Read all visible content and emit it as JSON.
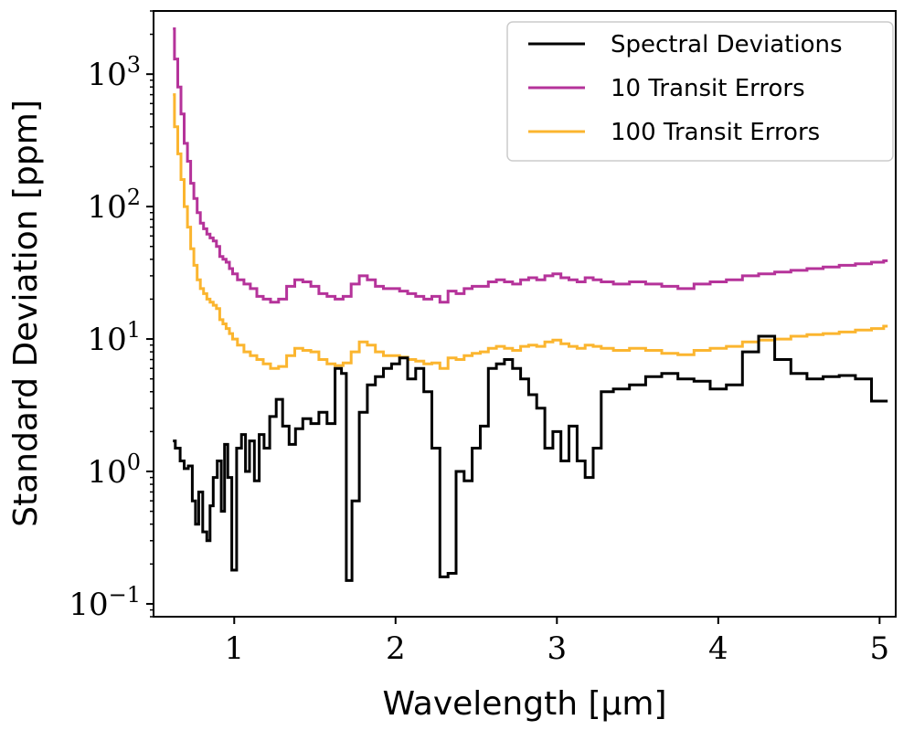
{
  "chart_data": {
    "type": "line",
    "drawstyle": "steps-mid",
    "title": "",
    "xlabel": "Wavelength [µm]",
    "ylabel": "Standard Deviation [ppm]",
    "xlim": [
      0.5,
      5.1
    ],
    "ylim": [
      0.08,
      3000
    ],
    "yscale": "log",
    "xticks": [
      {
        "value": 1,
        "label": "1"
      },
      {
        "value": 2,
        "label": "2"
      },
      {
        "value": 3,
        "label": "3"
      },
      {
        "value": 4,
        "label": "4"
      },
      {
        "value": 5,
        "label": "5"
      }
    ],
    "yticks": [
      {
        "value": 0.1,
        "base": "10",
        "exp": "−1"
      },
      {
        "value": 1,
        "base": "10",
        "exp": "0"
      },
      {
        "value": 10,
        "base": "10",
        "exp": "1"
      },
      {
        "value": 100,
        "base": "10",
        "exp": "2"
      },
      {
        "value": 1000,
        "base": "10",
        "exp": "3"
      }
    ],
    "legend_position": "top-right",
    "series": [
      {
        "name": "Spectral Deviations",
        "color": "#000000",
        "points": [
          [
            0.62,
            1.7
          ],
          [
            0.65,
            1.5
          ],
          [
            0.68,
            1.2
          ],
          [
            0.7,
            1.05
          ],
          [
            0.73,
            1.1
          ],
          [
            0.75,
            0.6
          ],
          [
            0.77,
            0.4
          ],
          [
            0.79,
            0.7
          ],
          [
            0.82,
            0.35
          ],
          [
            0.84,
            0.3
          ],
          [
            0.86,
            0.55
          ],
          [
            0.88,
            0.9
          ],
          [
            0.91,
            1.2
          ],
          [
            0.93,
            0.5
          ],
          [
            0.95,
            1.6
          ],
          [
            0.97,
            0.9
          ],
          [
            1.0,
            0.18
          ],
          [
            1.03,
            1.5
          ],
          [
            1.06,
            1.9
          ],
          [
            1.08,
            1.0
          ],
          [
            1.11,
            1.7
          ],
          [
            1.14,
            0.85
          ],
          [
            1.17,
            1.9
          ],
          [
            1.2,
            1.5
          ],
          [
            1.24,
            2.6
          ],
          [
            1.28,
            3.5
          ],
          [
            1.32,
            2.2
          ],
          [
            1.36,
            1.6
          ],
          [
            1.4,
            2.1
          ],
          [
            1.45,
            2.5
          ],
          [
            1.5,
            2.3
          ],
          [
            1.55,
            2.8
          ],
          [
            1.6,
            2.3
          ],
          [
            1.65,
            6.0
          ],
          [
            1.68,
            5.5
          ],
          [
            1.71,
            0.15
          ],
          [
            1.75,
            0.6
          ],
          [
            1.8,
            2.8
          ],
          [
            1.85,
            4.5
          ],
          [
            1.9,
            5.2
          ],
          [
            1.95,
            6.0
          ],
          [
            2.0,
            6.5
          ],
          [
            2.05,
            7.2
          ],
          [
            2.1,
            5.0
          ],
          [
            2.15,
            6.0
          ],
          [
            2.2,
            4.0
          ],
          [
            2.25,
            1.5
          ],
          [
            2.3,
            0.16
          ],
          [
            2.35,
            0.17
          ],
          [
            2.4,
            1.0
          ],
          [
            2.45,
            0.85
          ],
          [
            2.5,
            1.5
          ],
          [
            2.55,
            2.2
          ],
          [
            2.6,
            6.0
          ],
          [
            2.65,
            6.5
          ],
          [
            2.7,
            7.0
          ],
          [
            2.75,
            6.0
          ],
          [
            2.8,
            5.0
          ],
          [
            2.85,
            3.8
          ],
          [
            2.9,
            3.0
          ],
          [
            2.95,
            1.5
          ],
          [
            3.0,
            2.0
          ],
          [
            3.05,
            1.2
          ],
          [
            3.1,
            2.2
          ],
          [
            3.15,
            1.2
          ],
          [
            3.2,
            0.9
          ],
          [
            3.25,
            1.5
          ],
          [
            3.3,
            4.0
          ],
          [
            3.4,
            4.2
          ],
          [
            3.5,
            4.5
          ],
          [
            3.6,
            5.2
          ],
          [
            3.7,
            5.5
          ],
          [
            3.8,
            5.0
          ],
          [
            3.9,
            4.8
          ],
          [
            4.0,
            4.2
          ],
          [
            4.1,
            4.5
          ],
          [
            4.2,
            8.0
          ],
          [
            4.3,
            10.5
          ],
          [
            4.4,
            7.0
          ],
          [
            4.5,
            5.5
          ],
          [
            4.6,
            5.0
          ],
          [
            4.7,
            5.2
          ],
          [
            4.8,
            5.3
          ],
          [
            4.9,
            5.0
          ],
          [
            5.0,
            3.4
          ],
          [
            5.05,
            3.4
          ]
        ]
      },
      {
        "name": "10 Transit Errors",
        "color": "#b5339a",
        "points": [
          [
            0.62,
            2200
          ],
          [
            0.64,
            1300
          ],
          [
            0.66,
            800
          ],
          [
            0.68,
            500
          ],
          [
            0.7,
            300
          ],
          [
            0.72,
            220
          ],
          [
            0.74,
            150
          ],
          [
            0.76,
            115
          ],
          [
            0.78,
            90
          ],
          [
            0.8,
            75
          ],
          [
            0.82,
            68
          ],
          [
            0.84,
            62
          ],
          [
            0.86,
            58
          ],
          [
            0.88,
            55
          ],
          [
            0.9,
            50
          ],
          [
            0.92,
            42
          ],
          [
            0.94,
            40
          ],
          [
            0.96,
            38
          ],
          [
            0.98,
            34
          ],
          [
            1.0,
            31
          ],
          [
            1.04,
            28
          ],
          [
            1.08,
            26
          ],
          [
            1.12,
            24
          ],
          [
            1.16,
            21
          ],
          [
            1.2,
            20
          ],
          [
            1.25,
            19
          ],
          [
            1.3,
            20
          ],
          [
            1.35,
            25
          ],
          [
            1.4,
            28
          ],
          [
            1.45,
            27
          ],
          [
            1.5,
            25
          ],
          [
            1.55,
            22
          ],
          [
            1.6,
            21
          ],
          [
            1.65,
            20
          ],
          [
            1.7,
            21
          ],
          [
            1.75,
            26
          ],
          [
            1.8,
            30
          ],
          [
            1.85,
            28
          ],
          [
            1.9,
            25
          ],
          [
            1.95,
            24
          ],
          [
            2.0,
            24
          ],
          [
            2.05,
            23
          ],
          [
            2.1,
            22
          ],
          [
            2.15,
            21
          ],
          [
            2.2,
            20
          ],
          [
            2.25,
            21
          ],
          [
            2.3,
            19
          ],
          [
            2.35,
            23
          ],
          [
            2.4,
            22
          ],
          [
            2.45,
            24
          ],
          [
            2.5,
            25
          ],
          [
            2.55,
            25
          ],
          [
            2.6,
            27
          ],
          [
            2.65,
            28
          ],
          [
            2.7,
            27
          ],
          [
            2.75,
            26
          ],
          [
            2.8,
            28
          ],
          [
            2.85,
            29
          ],
          [
            2.9,
            28
          ],
          [
            2.95,
            30
          ],
          [
            3.0,
            31
          ],
          [
            3.05,
            29
          ],
          [
            3.1,
            28
          ],
          [
            3.15,
            27
          ],
          [
            3.2,
            29
          ],
          [
            3.25,
            28
          ],
          [
            3.3,
            27
          ],
          [
            3.4,
            26
          ],
          [
            3.5,
            27
          ],
          [
            3.6,
            26
          ],
          [
            3.7,
            25
          ],
          [
            3.8,
            24
          ],
          [
            3.9,
            26
          ],
          [
            4.0,
            27
          ],
          [
            4.1,
            28
          ],
          [
            4.2,
            30
          ],
          [
            4.3,
            31
          ],
          [
            4.4,
            32
          ],
          [
            4.5,
            33
          ],
          [
            4.6,
            34
          ],
          [
            4.7,
            35
          ],
          [
            4.8,
            36
          ],
          [
            4.9,
            37
          ],
          [
            5.0,
            38
          ],
          [
            5.05,
            39
          ]
        ]
      },
      {
        "name": "100 Transit Errors",
        "color": "#fbb52f",
        "points": [
          [
            0.62,
            700
          ],
          [
            0.64,
            400
          ],
          [
            0.66,
            250
          ],
          [
            0.68,
            160
          ],
          [
            0.7,
            100
          ],
          [
            0.72,
            70
          ],
          [
            0.74,
            48
          ],
          [
            0.76,
            36
          ],
          [
            0.78,
            28
          ],
          [
            0.8,
            24
          ],
          [
            0.82,
            22
          ],
          [
            0.84,
            20
          ],
          [
            0.86,
            19
          ],
          [
            0.88,
            18
          ],
          [
            0.9,
            17
          ],
          [
            0.92,
            14
          ],
          [
            0.94,
            13
          ],
          [
            0.96,
            12
          ],
          [
            0.98,
            11
          ],
          [
            1.0,
            10
          ],
          [
            1.04,
            9
          ],
          [
            1.08,
            8
          ],
          [
            1.12,
            7.5
          ],
          [
            1.16,
            7
          ],
          [
            1.2,
            6.5
          ],
          [
            1.25,
            6
          ],
          [
            1.3,
            6.2
          ],
          [
            1.35,
            7.5
          ],
          [
            1.4,
            8.5
          ],
          [
            1.45,
            8.2
          ],
          [
            1.5,
            8
          ],
          [
            1.55,
            7
          ],
          [
            1.6,
            6.5
          ],
          [
            1.65,
            6.3
          ],
          [
            1.7,
            6.6
          ],
          [
            1.75,
            8
          ],
          [
            1.8,
            9.5
          ],
          [
            1.85,
            9
          ],
          [
            1.9,
            8
          ],
          [
            1.95,
            7.5
          ],
          [
            2.0,
            7.5
          ],
          [
            2.05,
            7.3
          ],
          [
            2.1,
            7
          ],
          [
            2.15,
            6.8
          ],
          [
            2.2,
            6.5
          ],
          [
            2.25,
            6.6
          ],
          [
            2.3,
            6
          ],
          [
            2.35,
            7.2
          ],
          [
            2.4,
            7
          ],
          [
            2.45,
            7.5
          ],
          [
            2.5,
            7.8
          ],
          [
            2.55,
            8
          ],
          [
            2.6,
            8.5
          ],
          [
            2.65,
            8.8
          ],
          [
            2.7,
            8.5
          ],
          [
            2.75,
            8.2
          ],
          [
            2.8,
            8.8
          ],
          [
            2.85,
            9
          ],
          [
            2.9,
            8.8
          ],
          [
            2.95,
            9.5
          ],
          [
            3.0,
            9.8
          ],
          [
            3.05,
            9.2
          ],
          [
            3.1,
            8.8
          ],
          [
            3.15,
            8.5
          ],
          [
            3.2,
            9
          ],
          [
            3.25,
            8.8
          ],
          [
            3.3,
            8.5
          ],
          [
            3.4,
            8.2
          ],
          [
            3.5,
            8.5
          ],
          [
            3.6,
            8.2
          ],
          [
            3.7,
            7.8
          ],
          [
            3.8,
            7.6
          ],
          [
            3.9,
            8.2
          ],
          [
            4.0,
            8.5
          ],
          [
            4.1,
            8.8
          ],
          [
            4.2,
            9.5
          ],
          [
            4.3,
            9.8
          ],
          [
            4.4,
            10
          ],
          [
            4.5,
            10.5
          ],
          [
            4.6,
            10.8
          ],
          [
            4.7,
            11
          ],
          [
            4.8,
            11.3
          ],
          [
            4.9,
            11.7
          ],
          [
            5.0,
            12
          ],
          [
            5.05,
            12.5
          ]
        ]
      }
    ]
  }
}
